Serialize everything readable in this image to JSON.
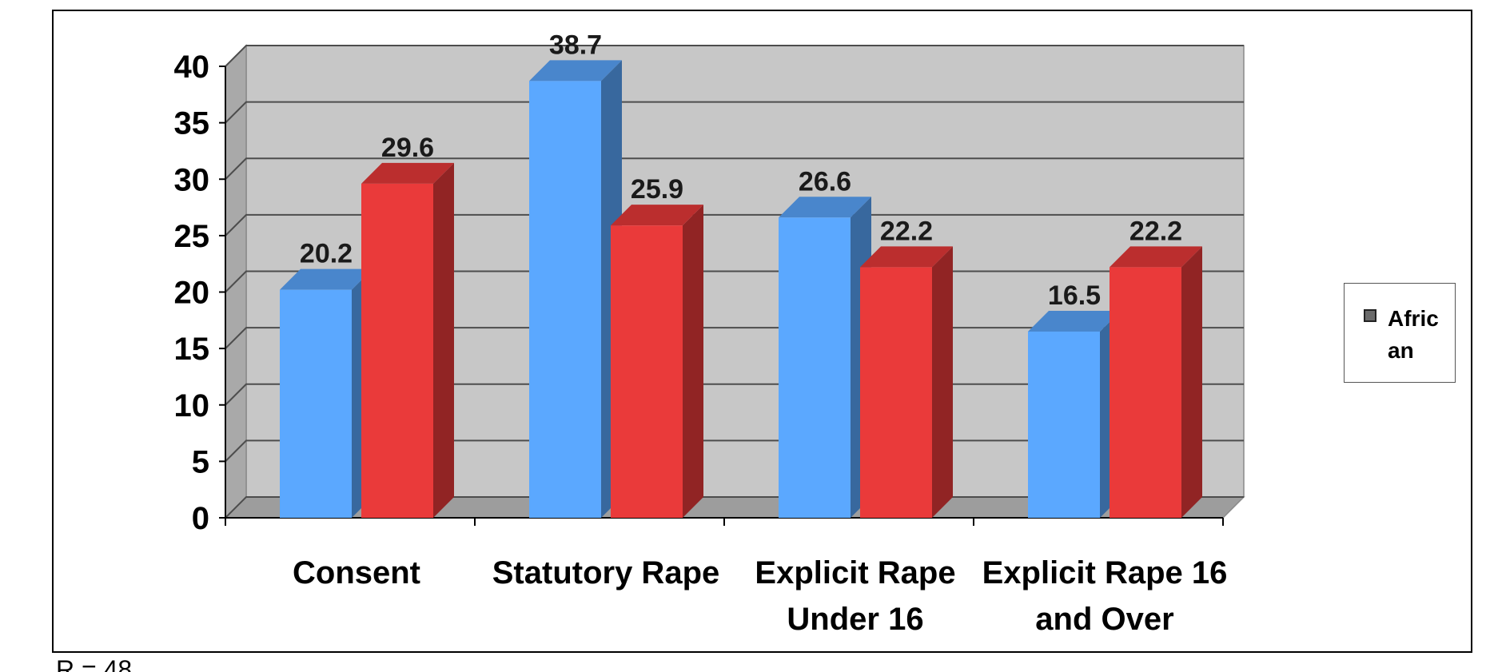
{
  "chart_data": {
    "type": "bar",
    "categories": [
      "Consent",
      "Statutory Rape",
      "Explicit Rape Under 16",
      "Explicit Rape 16 and Over"
    ],
    "category_lines": [
      [
        "Consent"
      ],
      [
        "Statutory Rape"
      ],
      [
        "Explicit Rape",
        "Under 16"
      ],
      [
        "Explicit Rape 16",
        "and Over"
      ]
    ],
    "series": [
      {
        "name": "African",
        "color": "#5ba8ff",
        "values": [
          20.2,
          38.7,
          26.6,
          16.5
        ]
      },
      {
        "color": "#ea3a3a",
        "values": [
          29.6,
          25.9,
          22.2,
          22.2
        ]
      }
    ],
    "ylim": [
      0,
      40
    ],
    "yticks": [
      0,
      5,
      10,
      15,
      20,
      25,
      30,
      35,
      40
    ],
    "grid": true,
    "legend_placement": "right",
    "wall_color": "#c7c7c7",
    "xlabel": "",
    "ylabel": ""
  },
  "legend": {
    "text": "African"
  },
  "footnote": "R = 48"
}
